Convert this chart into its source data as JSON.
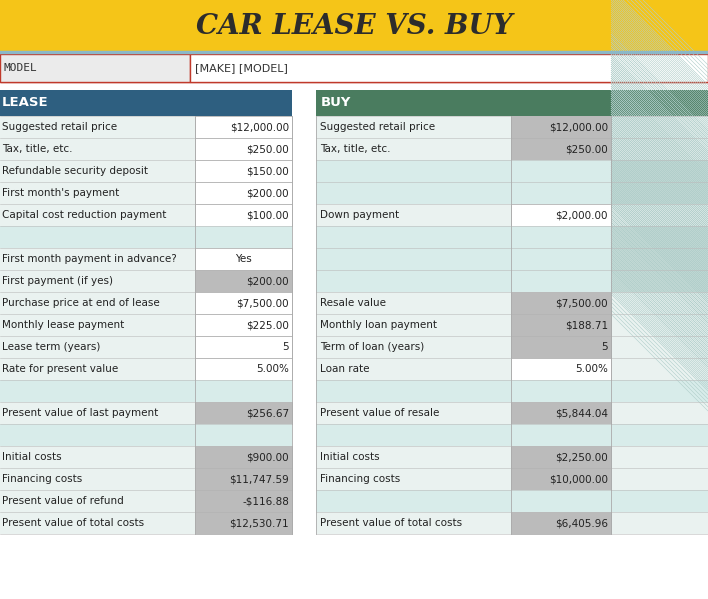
{
  "title": "CAR LEASE VS. BUY",
  "title_bg": "#F5C518",
  "title_color": "#2c2c2c",
  "model_label": "MODEL",
  "model_value": "[MAKE] [MODEL]",
  "lease_header": "LEASE",
  "buy_header": "BUY",
  "lease_header_bg": "#2E5F80",
  "buy_header_bg": "#4A7C5F",
  "header_text_color": "#FFFFFF",
  "separator_color": "#8BB8C8",
  "model_border_color": "#C0392B",
  "row_alt_bg": "#EAF2F0",
  "row_blank_bg": "#D8ECEA",
  "row_val_gray": "#B8B8B8",
  "row_val_white": "#FFFFFF",
  "row_val_hatched": "#D8ECEA",
  "lease_rows": [
    {
      "label": "Suggested retail price",
      "value": "$12,000.00",
      "lbg": "#EAF2F0",
      "vbg": "#FFFFFF",
      "blank": false
    },
    {
      "label": "Tax, title, etc.",
      "value": "$250.00",
      "lbg": "#EAF2F0",
      "vbg": "#FFFFFF",
      "blank": false
    },
    {
      "label": "Refundable security deposit",
      "value": "$150.00",
      "lbg": "#EAF2F0",
      "vbg": "#FFFFFF",
      "blank": false
    },
    {
      "label": "First month's payment",
      "value": "$200.00",
      "lbg": "#EAF2F0",
      "vbg": "#FFFFFF",
      "blank": false
    },
    {
      "label": "Capital cost reduction payment",
      "value": "$100.00",
      "lbg": "#EAF2F0",
      "vbg": "#FFFFFF",
      "blank": false
    },
    {
      "label": "",
      "value": "",
      "lbg": "#D8ECEA",
      "vbg": "#D8ECEA",
      "blank": true
    },
    {
      "label": "First month payment in advance?",
      "value": "Yes",
      "lbg": "#EAF2F0",
      "vbg": "#FFFFFF",
      "blank": false,
      "center_val": true
    },
    {
      "label": "First payment (if yes)",
      "value": "$200.00",
      "lbg": "#EAF2F0",
      "vbg": "#BBBBBB",
      "blank": false
    },
    {
      "label": "Purchase price at end of lease",
      "value": "$7,500.00",
      "lbg": "#EAF2F0",
      "vbg": "#FFFFFF",
      "blank": false
    },
    {
      "label": "Monthly lease payment",
      "value": "$225.00",
      "lbg": "#EAF2F0",
      "vbg": "#FFFFFF",
      "blank": false
    },
    {
      "label": "Lease term (years)",
      "value": "5",
      "lbg": "#EAF2F0",
      "vbg": "#FFFFFF",
      "blank": false
    },
    {
      "label": "Rate for present value",
      "value": "5.00%",
      "lbg": "#EAF2F0",
      "vbg": "#FFFFFF",
      "blank": false
    },
    {
      "label": "",
      "value": "",
      "lbg": "#D8ECEA",
      "vbg": "#D8ECEA",
      "blank": true
    },
    {
      "label": "Present value of last payment",
      "value": "$256.67",
      "lbg": "#EAF2F0",
      "vbg": "#BBBBBB",
      "blank": false
    },
    {
      "label": "",
      "value": "",
      "lbg": "#D8ECEA",
      "vbg": "#D8ECEA",
      "blank": true
    },
    {
      "label": "Initial costs",
      "value": "$900.00",
      "lbg": "#EAF2F0",
      "vbg": "#BBBBBB",
      "blank": false
    },
    {
      "label": "Financing costs",
      "value": "$11,747.59",
      "lbg": "#EAF2F0",
      "vbg": "#BBBBBB",
      "blank": false
    },
    {
      "label": "Present value of refund",
      "value": "-$116.88",
      "lbg": "#EAF2F0",
      "vbg": "#BBBBBB",
      "blank": false
    },
    {
      "label": "Present value of total costs",
      "value": "$12,530.71",
      "lbg": "#EAF2F0",
      "vbg": "#BBBBBB",
      "blank": false
    }
  ],
  "buy_rows": [
    {
      "label": "Suggested retail price",
      "value": "$12,000.00",
      "lbg": "#EAF2F0",
      "vbg": "#BBBBBB",
      "blank": false,
      "hatched": false
    },
    {
      "label": "Tax, title, etc.",
      "value": "$250.00",
      "lbg": "#EAF2F0",
      "vbg": "#BBBBBB",
      "blank": false,
      "hatched": false
    },
    {
      "label": "",
      "value": "",
      "lbg": "#D8ECEA",
      "vbg": "#D8ECEA",
      "blank": true,
      "hatched": true
    },
    {
      "label": "",
      "value": "",
      "lbg": "#D8ECEA",
      "vbg": "#D8ECEA",
      "blank": true,
      "hatched": true
    },
    {
      "label": "Down payment",
      "value": "$2,000.00",
      "lbg": "#EAF2F0",
      "vbg": "#FFFFFF",
      "blank": false,
      "hatched": false
    },
    {
      "label": "",
      "value": "",
      "lbg": "#D8ECEA",
      "vbg": "#D8ECEA",
      "blank": true,
      "hatched": true
    },
    {
      "label": "",
      "value": "",
      "lbg": "#D8ECEA",
      "vbg": "#D8ECEA",
      "blank": true,
      "hatched": true
    },
    {
      "label": "",
      "value": "",
      "lbg": "#D8ECEA",
      "vbg": "#D8ECEA",
      "blank": true,
      "hatched": true
    },
    {
      "label": "Resale value",
      "value": "$7,500.00",
      "lbg": "#EAF2F0",
      "vbg": "#BBBBBB",
      "blank": false,
      "hatched": false
    },
    {
      "label": "Monthly loan payment",
      "value": "$188.71",
      "lbg": "#EAF2F0",
      "vbg": "#BBBBBB",
      "blank": false,
      "hatched": false
    },
    {
      "label": "Term of loan (years)",
      "value": "5",
      "lbg": "#EAF2F0",
      "vbg": "#BBBBBB",
      "blank": false,
      "hatched": false
    },
    {
      "label": "Loan rate",
      "value": "5.00%",
      "lbg": "#EAF2F0",
      "vbg": "#FFFFFF",
      "blank": false,
      "hatched": false
    },
    {
      "label": "",
      "value": "",
      "lbg": "#D8ECEA",
      "vbg": "#D8ECEA",
      "blank": true,
      "hatched": false
    },
    {
      "label": "Present value of resale",
      "value": "$5,844.04",
      "lbg": "#EAF2F0",
      "vbg": "#BBBBBB",
      "blank": false,
      "hatched": false
    },
    {
      "label": "",
      "value": "",
      "lbg": "#D8ECEA",
      "vbg": "#D8ECEA",
      "blank": true,
      "hatched": false
    },
    {
      "label": "Initial costs",
      "value": "$2,250.00",
      "lbg": "#EAF2F0",
      "vbg": "#BBBBBB",
      "blank": false,
      "hatched": false
    },
    {
      "label": "Financing costs",
      "value": "$10,000.00",
      "lbg": "#EAF2F0",
      "vbg": "#BBBBBB",
      "blank": false,
      "hatched": false
    },
    {
      "label": "",
      "value": "",
      "lbg": "#D8ECEA",
      "vbg": "#D8ECEA",
      "blank": true,
      "hatched": false
    },
    {
      "label": "Present value of total costs",
      "value": "$6,405.96",
      "lbg": "#EAF2F0",
      "vbg": "#BBBBBB",
      "blank": false,
      "hatched": false
    }
  ]
}
